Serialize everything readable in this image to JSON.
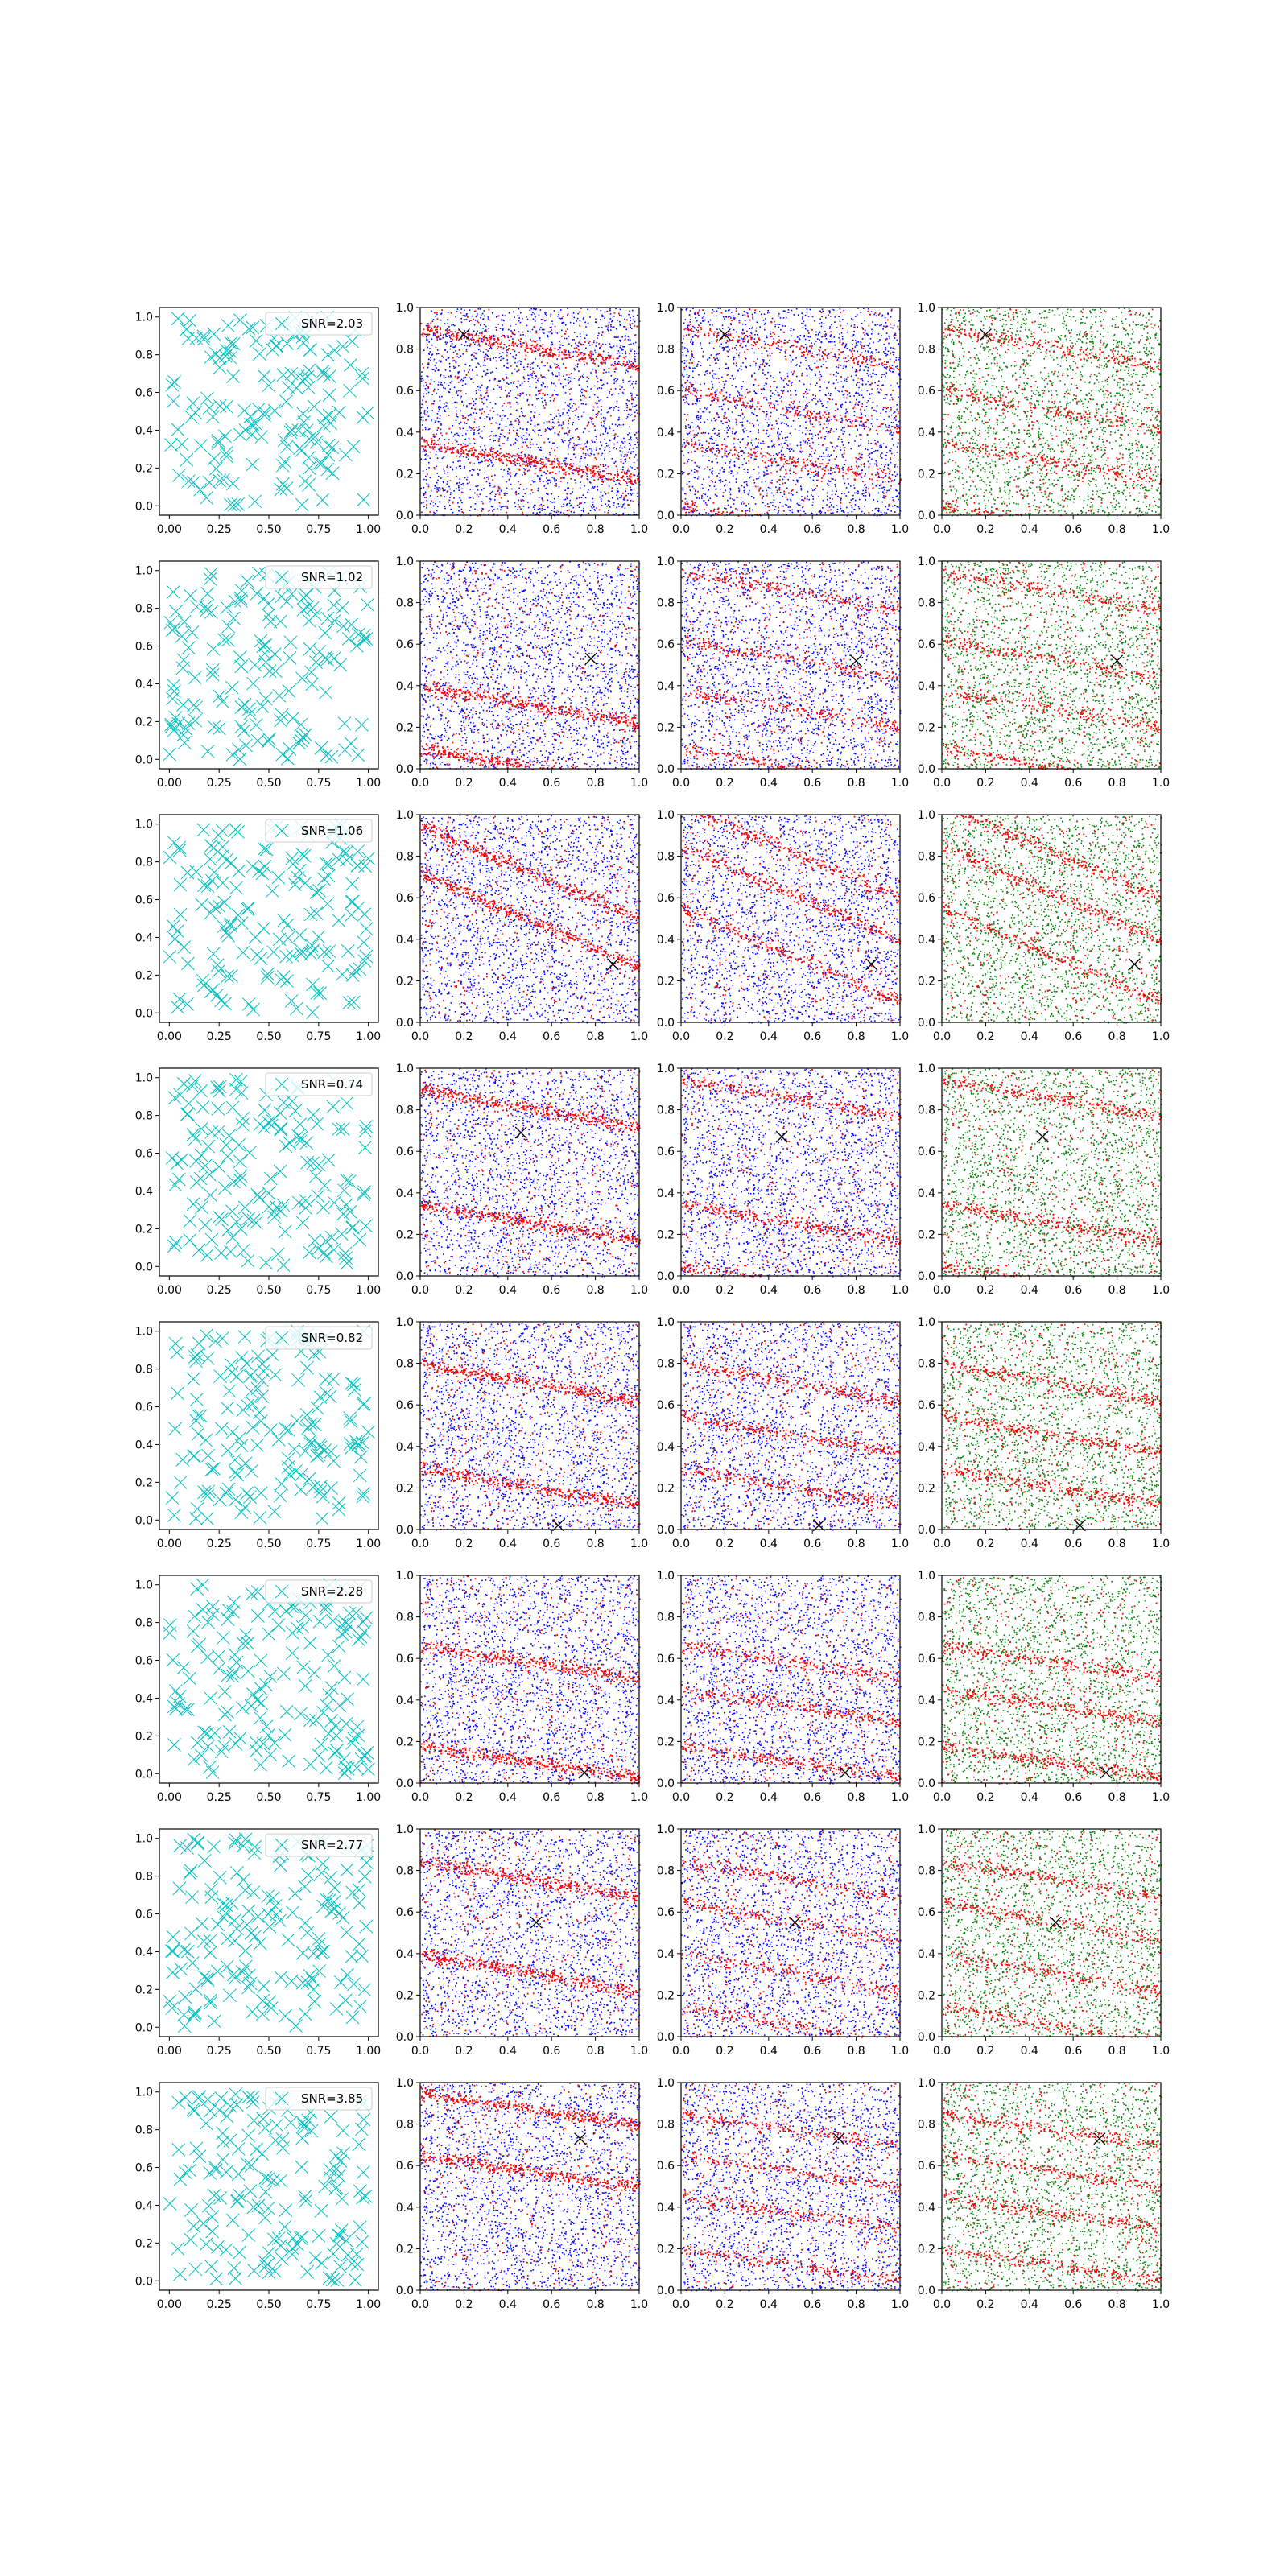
{
  "figure": {
    "rows": 8,
    "columns": 4
  },
  "colors": {
    "scatter_marker": "#00bfbf",
    "class_a": "#ff0000",
    "class_b": "#0000ff",
    "class_c": "#008000",
    "target_marker": "#000000",
    "axes": "#000000"
  },
  "chart_data": [
    {
      "type": "scatter",
      "row": 1,
      "columns": [
        "random positions (x markers)",
        "red/blue points",
        "red/blue points",
        "red/green points"
      ],
      "legend": "SNR=2.03",
      "legend_position": "upper right",
      "xlim": [
        0,
        1
      ],
      "ylim": [
        0,
        1
      ],
      "x_ticks_col1": [
        "0.00",
        "0.25",
        "0.50",
        "0.75",
        "1.00"
      ],
      "x_ticks": [
        "0.0",
        "0.2",
        "0.4",
        "0.6",
        "0.8",
        "1.0"
      ],
      "y_ticks": [
        "0.0",
        "0.2",
        "0.4",
        "0.6",
        "0.8",
        "1.0"
      ],
      "target": [
        [
          0.2,
          0.87
        ],
        [
          0.2,
          0.87
        ],
        [
          0.2,
          0.87
        ]
      ],
      "stripe_slope": -0.18,
      "stripe_intercepts_col2": [
        0.35,
        0.9
      ],
      "stripe_intercepts_col3": [
        0.05,
        0.35,
        0.6,
        0.9
      ],
      "stripe_intercepts_col4": [
        0.05,
        0.35,
        0.6,
        0.9
      ]
    },
    {
      "type": "scatter",
      "row": 2,
      "legend": "SNR=1.02",
      "legend_position": "upper right",
      "xlim": [
        0,
        1
      ],
      "ylim": [
        0,
        1
      ],
      "target": [
        [
          0.78,
          0.53
        ],
        [
          0.8,
          0.52
        ],
        [
          0.8,
          0.52
        ]
      ],
      "stripe_slope": -0.18,
      "stripe_intercepts_col2": [
        0.4,
        0.1
      ],
      "stripe_intercepts_col3": [
        0.1,
        0.38,
        0.62,
        0.95
      ],
      "stripe_intercepts_col4": [
        0.1,
        0.38,
        0.62,
        0.95
      ]
    },
    {
      "type": "scatter",
      "row": 3,
      "legend": "SNR=1.06",
      "legend_position": "upper right",
      "xlim": [
        0,
        1
      ],
      "ylim": [
        0,
        1
      ],
      "target": [
        [
          0.88,
          0.28
        ],
        [
          0.87,
          0.28
        ],
        [
          0.88,
          0.28
        ]
      ],
      "stripe_slope": -0.45,
      "stripe_intercepts_col2": [
        0.72,
        0.95
      ],
      "stripe_intercepts_col3": [
        0.55,
        0.85,
        1.05
      ],
      "stripe_intercepts_col4": [
        0.55,
        0.85,
        1.05
      ]
    },
    {
      "type": "scatter",
      "row": 4,
      "legend": "SNR=0.74",
      "legend_position": "upper right",
      "xlim": [
        0,
        1
      ],
      "ylim": [
        0,
        1
      ],
      "target": [
        [
          0.46,
          0.69
        ],
        [
          0.46,
          0.67
        ],
        [
          0.46,
          0.67
        ]
      ],
      "stripe_slope": -0.18,
      "stripe_intercepts_col2": [
        0.35,
        0.9
      ],
      "stripe_intercepts_col3": [
        0.05,
        0.35,
        0.95
      ],
      "stripe_intercepts_col4": [
        0.05,
        0.35,
        0.95
      ]
    },
    {
      "type": "scatter",
      "row": 5,
      "legend": "SNR=0.82",
      "legend_position": "upper right",
      "xlim": [
        0,
        1
      ],
      "ylim": [
        0,
        1
      ],
      "target": [
        [
          0.63,
          0.02
        ],
        [
          0.63,
          0.02
        ],
        [
          0.63,
          0.02
        ]
      ],
      "stripe_slope": -0.18,
      "stripe_intercepts_col2": [
        0.3,
        0.8
      ],
      "stripe_intercepts_col3": [
        0.3,
        0.55,
        0.8
      ],
      "stripe_intercepts_col4": [
        0.3,
        0.55,
        0.8
      ]
    },
    {
      "type": "scatter",
      "row": 6,
      "legend": "SNR=2.28",
      "legend_position": "upper right",
      "xlim": [
        0,
        1
      ],
      "ylim": [
        0,
        1
      ],
      "target": [
        [
          0.75,
          0.05
        ],
        [
          0.75,
          0.05
        ],
        [
          0.75,
          0.05
        ]
      ],
      "stripe_slope": -0.15,
      "stripe_intercepts_col2": [
        0.18,
        0.66
      ],
      "stripe_intercepts_col3": [
        0.18,
        0.45,
        0.66
      ],
      "stripe_intercepts_col4": [
        0.18,
        0.45,
        0.66
      ]
    },
    {
      "type": "scatter",
      "row": 7,
      "legend": "SNR=2.77",
      "legend_position": "upper right",
      "xlim": [
        0,
        1
      ],
      "ylim": [
        0,
        1
      ],
      "target": [
        [
          0.53,
          0.55
        ],
        [
          0.52,
          0.55
        ],
        [
          0.52,
          0.55
        ]
      ],
      "stripe_slope": -0.18,
      "stripe_intercepts_col2": [
        0.85,
        0.4
      ],
      "stripe_intercepts_col3": [
        0.15,
        0.4,
        0.65,
        0.85
      ],
      "stripe_intercepts_col4": [
        0.15,
        0.4,
        0.65,
        0.85
      ]
    },
    {
      "type": "scatter",
      "row": 8,
      "legend": "SNR=3.85",
      "legend_position": "upper right",
      "xlim": [
        0,
        1
      ],
      "ylim": [
        0,
        1
      ],
      "target": [
        [
          0.73,
          0.73
        ],
        [
          0.72,
          0.73
        ],
        [
          0.72,
          0.73
        ]
      ],
      "stripe_slope": -0.15,
      "stripe_intercepts_col2": [
        0.65,
        0.95
      ],
      "stripe_intercepts_col3": [
        0.2,
        0.45,
        0.65,
        0.85
      ],
      "stripe_intercepts_col4": [
        0.2,
        0.45,
        0.65,
        0.85
      ]
    }
  ]
}
